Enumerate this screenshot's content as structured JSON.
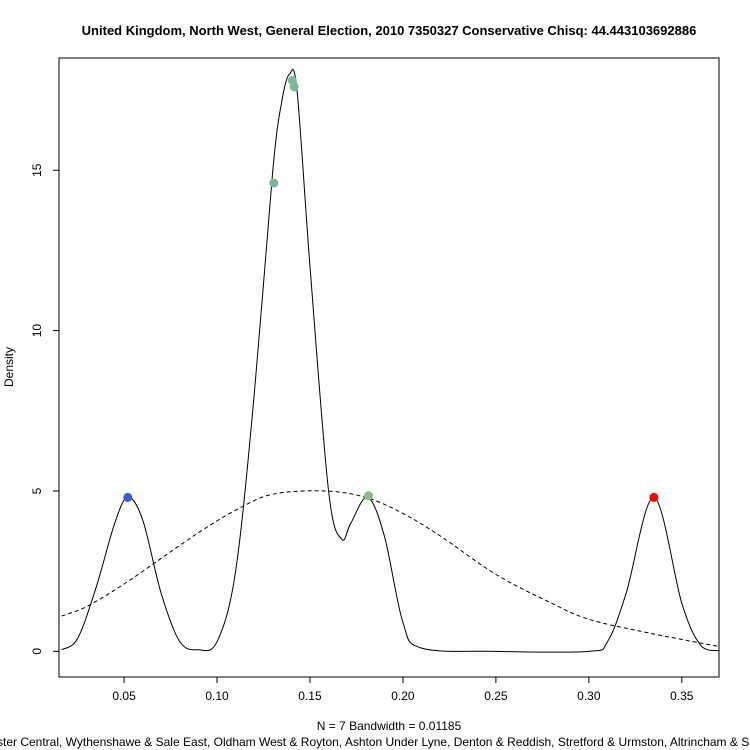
{
  "chart_data": {
    "type": "line",
    "title": "United Kingdom, North West, General Election, 2010 7350327 Conservative Chisq: 44.443103692886",
    "xlabel": "N = 7   Bandwidth = 0.01185",
    "ylabel": "Density",
    "subtitle": "Manchester Central, Wythenshawe & Sale East, Oldham West & Royton, Ashton Under Lyne, Denton & Reddish, Stretford & Urmston, Altrincham & Sale West",
    "xlim": [
      0.015,
      0.37
    ],
    "ylim": [
      -0.8,
      18.5
    ],
    "x_ticks": [
      0.05,
      0.1,
      0.15,
      0.2,
      0.25,
      0.3,
      0.35
    ],
    "x_tick_labels": [
      "0.05",
      "0.10",
      "0.15",
      "0.20",
      "0.25",
      "0.30",
      "0.35"
    ],
    "y_ticks": [
      0,
      5,
      10,
      15
    ],
    "y_tick_labels": [
      "0",
      "5",
      "10",
      "15"
    ],
    "grid": false,
    "series": [
      {
        "style": "solid",
        "color": "#000000",
        "x": [
          0.0164,
          0.025,
          0.035,
          0.045,
          0.052,
          0.06,
          0.07,
          0.08,
          0.09,
          0.1,
          0.11,
          0.12,
          0.13,
          0.135,
          0.139,
          0.143,
          0.15,
          0.16,
          0.167,
          0.172,
          0.181,
          0.19,
          0.2,
          0.21,
          0.25,
          0.3,
          0.31,
          0.32,
          0.335,
          0.35,
          0.36,
          0.37
        ],
        "y": [
          0.05,
          0.4,
          2.0,
          4.0,
          4.8,
          4.1,
          1.8,
          0.3,
          0.05,
          0.3,
          2.5,
          8.0,
          15.0,
          17.2,
          18.0,
          17.5,
          12.0,
          5.0,
          3.5,
          4.0,
          4.8,
          3.6,
          0.9,
          0.1,
          0.0,
          0.0,
          0.3,
          1.8,
          4.8,
          1.5,
          0.2,
          0.02
        ]
      },
      {
        "style": "dashed",
        "color": "#000000",
        "x": [
          0.0164,
          0.03,
          0.05,
          0.07,
          0.09,
          0.11,
          0.13,
          0.158,
          0.18,
          0.2,
          0.22,
          0.25,
          0.28,
          0.3,
          0.33,
          0.37
        ],
        "y": [
          1.1,
          1.4,
          2.1,
          2.9,
          3.7,
          4.4,
          4.9,
          5.0,
          4.8,
          4.3,
          3.6,
          2.4,
          1.5,
          1.0,
          0.6,
          0.15
        ]
      }
    ],
    "points": [
      {
        "x": 0.052,
        "y": 4.8,
        "color": "#3a5fcd"
      },
      {
        "x": 0.1305,
        "y": 14.6,
        "color": "#7ab89a"
      },
      {
        "x": 0.1405,
        "y": 17.8,
        "color": "#7ab89a"
      },
      {
        "x": 0.1415,
        "y": 17.6,
        "color": "#7ab89a"
      },
      {
        "x": 0.1815,
        "y": 4.85,
        "color": "#8fb88a"
      },
      {
        "x": 0.335,
        "y": 4.8,
        "color": "#ff0000"
      }
    ]
  }
}
